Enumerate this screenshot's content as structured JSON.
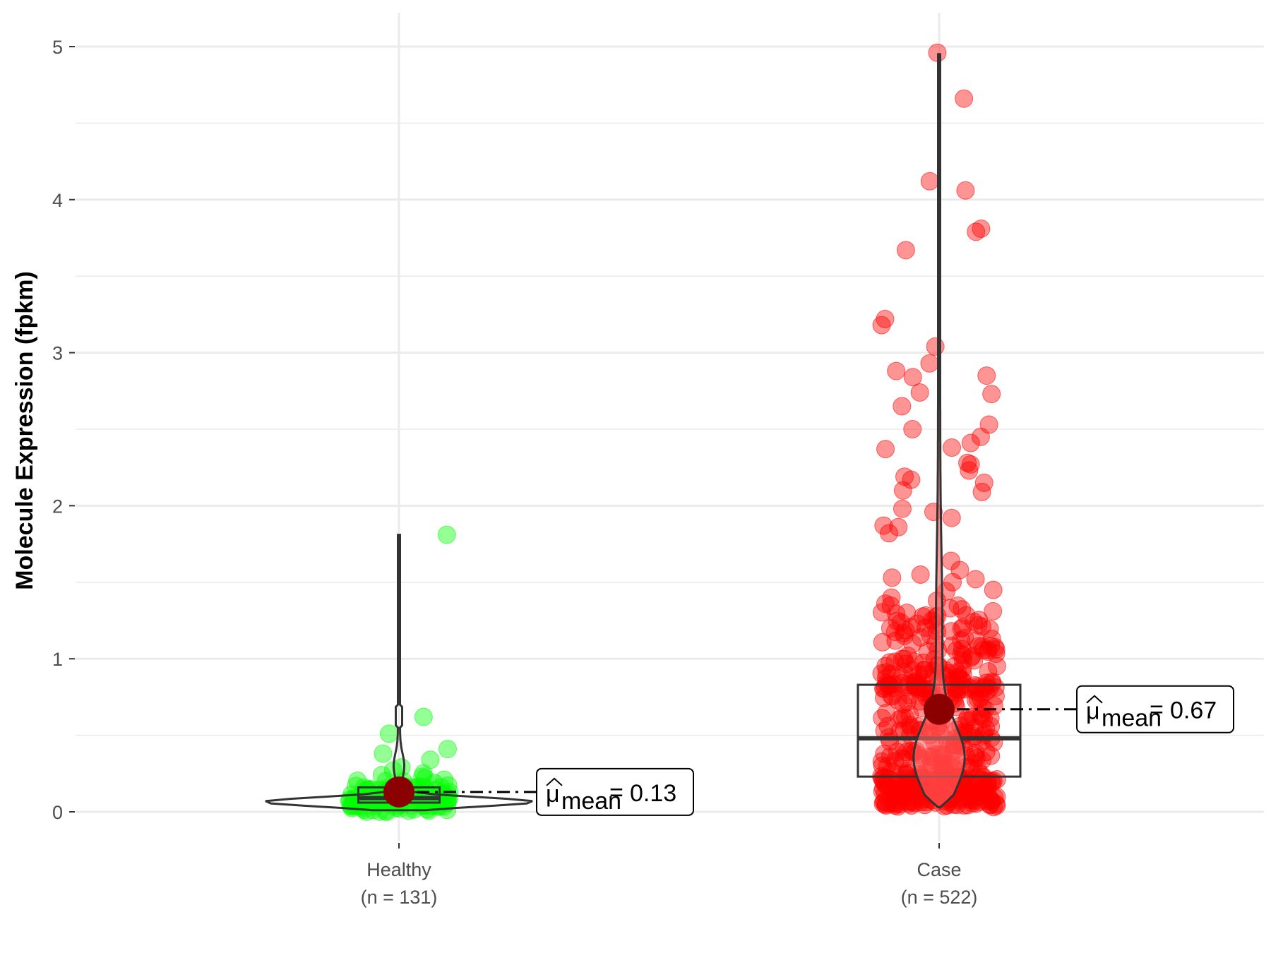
{
  "chart_data": {
    "type": "violin-box-scatter",
    "ylabel": "Molecule Expression (fpkm)",
    "ylim": [
      -0.15,
      5.2
    ],
    "yticks": [
      0,
      1,
      2,
      3,
      4,
      5
    ],
    "grid": true,
    "colors": {
      "healthy": "#00ff00",
      "case": "#ff0000",
      "mean": "#8b0000",
      "line": "#333333",
      "grid": "#ebebeb"
    },
    "groups": [
      {
        "name": "Healthy",
        "n_label": "(n = 131)",
        "color": "#00ff00",
        "mean": 0.13,
        "mean_label": "0.13",
        "box": {
          "q1": 0.06,
          "median": 0.09,
          "q3": 0.16,
          "whisker_low": 0.01,
          "whisker_high": 0.3
        },
        "violin_min": 0.01,
        "violin_max": 1.81,
        "outliers": [
          1.81,
          0.62,
          0.51,
          0.41,
          0.38,
          0.34,
          0.29,
          0.27,
          0.25,
          0.24,
          0.22,
          0.21
        ]
      },
      {
        "name": "Case",
        "n_label": "(n = 522)",
        "color": "#ff0000",
        "mean": 0.67,
        "mean_label": "0.67",
        "box": {
          "q1": 0.23,
          "median": 0.48,
          "q3": 0.83,
          "whisker_low": 0.0,
          "whisker_high": 1.7
        },
        "violin_min": 0.03,
        "violin_max": 4.95,
        "outliers": [
          4.96,
          4.66,
          4.12,
          4.06,
          3.81,
          3.79,
          3.67,
          3.22,
          3.18,
          3.04,
          2.93,
          2.88,
          2.85,
          2.84,
          2.74,
          2.73,
          2.65,
          2.53,
          2.5,
          2.45,
          2.41,
          2.38,
          2.37,
          2.28,
          2.27,
          2.23,
          2.19,
          2.17,
          2.15,
          2.1,
          2.09,
          1.98,
          1.96,
          1.92,
          1.87,
          1.86,
          1.82,
          1.64,
          1.58,
          1.55,
          1.53,
          1.52,
          1.5,
          1.45,
          1.44,
          1.4,
          1.38,
          1.36,
          1.33,
          1.3,
          1.28,
          1.25,
          1.22,
          1.2,
          1.18,
          1.15,
          1.12,
          1.1,
          1.08,
          1.05,
          1.02,
          1.0,
          0.98,
          0.95,
          0.92,
          0.9,
          0.88,
          0.86
        ]
      }
    ]
  },
  "annotation": {
    "mu_symbol": "μ",
    "mean_subscript": "mean",
    "equals": "="
  }
}
